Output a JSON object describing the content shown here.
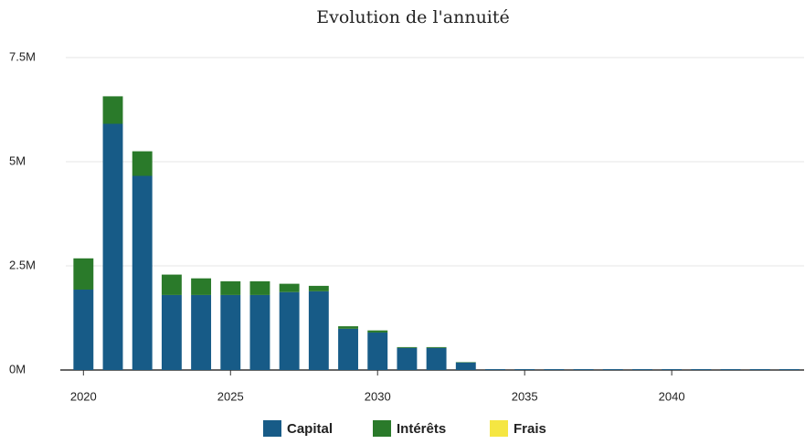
{
  "chart_data": {
    "type": "stacked_bar",
    "title": "Evolution de l'annuité",
    "x": [
      2020,
      2021,
      2022,
      2023,
      2024,
      2025,
      2026,
      2027,
      2028,
      2029,
      2030,
      2031,
      2032,
      2033,
      2034,
      2035,
      2036,
      2037,
      2038,
      2039,
      2040,
      2041,
      2042,
      2043,
      2044
    ],
    "series": [
      {
        "name": "Capital",
        "color": "#175b87",
        "values": [
          1930000,
          5910000,
          4660000,
          1800000,
          1800000,
          1800000,
          1800000,
          1870000,
          1890000,
          990000,
          900000,
          530000,
          530000,
          180000,
          20000,
          20000,
          20000,
          20000,
          20000,
          20000,
          20000,
          20000,
          20000,
          20000,
          20000
        ]
      },
      {
        "name": "Intérêts",
        "color": "#2a7a2a",
        "values": [
          750000,
          660000,
          590000,
          490000,
          400000,
          330000,
          330000,
          200000,
          130000,
          60000,
          50000,
          20000,
          20000,
          10000,
          0,
          0,
          0,
          0,
          0,
          0,
          0,
          0,
          0,
          0,
          0
        ]
      },
      {
        "name": "Frais",
        "color": "#f5e642",
        "values": [
          0,
          0,
          0,
          0,
          0,
          0,
          0,
          0,
          0,
          0,
          0,
          0,
          0,
          0,
          0,
          0,
          0,
          0,
          0,
          0,
          0,
          0,
          0,
          0,
          0
        ]
      }
    ],
    "xlim": [
      2019.4,
      2044.5
    ],
    "xticks": [
      2020,
      2025,
      2030,
      2035,
      2040
    ],
    "ylim": [
      0,
      7500000
    ],
    "yticks": [
      {
        "value": 0,
        "label": "0M"
      },
      {
        "value": 2500000,
        "label": "2.5M"
      },
      {
        "value": 5000000,
        "label": "5M"
      },
      {
        "value": 7500000,
        "label": "7.5M"
      }
    ],
    "grid": true
  }
}
